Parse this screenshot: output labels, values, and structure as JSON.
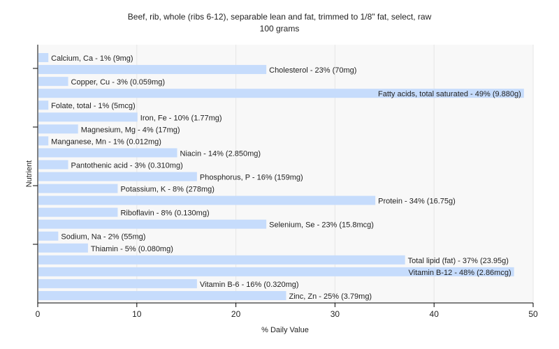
{
  "chart_data": {
    "type": "bar",
    "orientation": "horizontal",
    "title": "Beef, rib, whole (ribs 6-12), separable lean and fat, trimmed to 1/8\" fat, select, raw",
    "subtitle": "100 grams",
    "xlabel": "% Daily Value",
    "ylabel": "Nutrient",
    "xlim": [
      0,
      50
    ],
    "xticks": [
      "0",
      "10",
      "20",
      "30",
      "40",
      "50"
    ],
    "grid": true,
    "bar_color": "#c6dcfc",
    "categories": [
      "Calcium, Ca",
      "Cholesterol",
      "Copper, Cu",
      "Fatty acids, total saturated",
      "Folate, total",
      "Iron, Fe",
      "Magnesium, Mg",
      "Manganese, Mn",
      "Niacin",
      "Pantothenic acid",
      "Phosphorus, P",
      "Potassium, K",
      "Protein",
      "Riboflavin",
      "Selenium, Se",
      "Sodium, Na",
      "Thiamin",
      "Total lipid (fat)",
      "Vitamin B-12",
      "Vitamin B-6",
      "Zinc, Zn"
    ],
    "values": [
      1,
      23,
      3,
      49,
      1,
      10,
      4,
      1,
      14,
      3,
      16,
      8,
      34,
      8,
      23,
      2,
      5,
      37,
      48,
      16,
      25
    ],
    "labels": [
      "Calcium, Ca - 1% (9mg)",
      "Cholesterol - 23% (70mg)",
      "Copper, Cu - 3% (0.059mg)",
      "Fatty acids, total saturated - 49% (9.880g)",
      "Folate, total - 1% (5mcg)",
      "Iron, Fe - 10% (1.77mg)",
      "Magnesium, Mg - 4% (17mg)",
      "Manganese, Mn - 1% (0.012mg)",
      "Niacin - 14% (2.850mg)",
      "Pantothenic acid - 3% (0.310mg)",
      "Phosphorus, P - 16% (159mg)",
      "Potassium, K - 8% (278mg)",
      "Protein - 34% (16.75g)",
      "Riboflavin - 8% (0.130mg)",
      "Selenium, Se - 23% (15.8mcg)",
      "Sodium, Na - 2% (55mg)",
      "Thiamin - 5% (0.080mg)",
      "Total lipid (fat) - 37% (23.95g)",
      "Vitamin B-12 - 48% (2.86mcg)",
      "Vitamin B-6 - 16% (0.320mg)",
      "Zinc, Zn - 25% (3.79mg)"
    ]
  }
}
